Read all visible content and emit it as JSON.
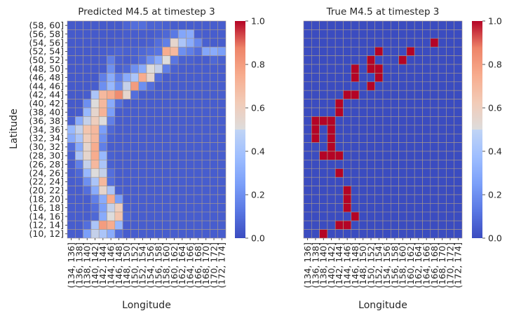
{
  "chart_data": [
    {
      "type": "heatmap",
      "title": "Predicted M4.5 at timestep 3",
      "xlabel": "Longitude",
      "ylabel": "Latitude",
      "x_categories": [
        "(134, 136]",
        "(136, 138]",
        "(138, 140]",
        "(140, 142]",
        "(142, 144]",
        "(144, 146]",
        "(146, 148]",
        "(148, 150]",
        "(150, 152]",
        "(152, 154]",
        "(154, 156]",
        "(156, 158]",
        "(158, 160]",
        "(160, 162]",
        "(162, 164]",
        "(164, 166]",
        "(166, 168]",
        "(168, 170]",
        "(170, 172]",
        "(172, 174]"
      ],
      "y_categories": [
        "(58, 60]",
        "(56, 58]",
        "(54, 56]",
        "(52, 54]",
        "(50, 52]",
        "(48, 50]",
        "(46, 48]",
        "(44, 46]",
        "(42, 44]",
        "(40, 42]",
        "(38, 40]",
        "(36, 38]",
        "(34, 36]",
        "(32, 34]",
        "(30, 32]",
        "(28, 30]",
        "(26, 28]",
        "(24, 26]",
        "(22, 24]",
        "(20, 22]",
        "(18, 20]",
        "(16, 18]",
        "(14, 16]",
        "(12, 14]",
        "(10, 12]"
      ],
      "colorbar": {
        "vmin": 0.0,
        "vmax": 1.0,
        "ticks": [
          "0.0",
          "0.2",
          "0.4",
          "0.6",
          "0.8",
          "1.0"
        ],
        "colormap": "coolwarm"
      },
      "values": [
        [
          0.04,
          0.04,
          0.04,
          0.04,
          0.04,
          0.04,
          0.04,
          0.07,
          0.1,
          0.1,
          0.07,
          0.07,
          0.06,
          0.05,
          0.05,
          0.05,
          0.05,
          0.05,
          0.05,
          0.05
        ],
        [
          0.04,
          0.04,
          0.04,
          0.04,
          0.04,
          0.04,
          0.04,
          0.05,
          0.05,
          0.05,
          0.05,
          0.06,
          0.08,
          0.13,
          0.28,
          0.3,
          0.06,
          0.05,
          0.05,
          0.05
        ],
        [
          0.04,
          0.04,
          0.04,
          0.04,
          0.04,
          0.04,
          0.05,
          0.05,
          0.05,
          0.05,
          0.06,
          0.1,
          0.15,
          0.55,
          0.4,
          0.3,
          0.18,
          0.06,
          0.05,
          0.05
        ],
        [
          0.04,
          0.04,
          0.04,
          0.04,
          0.05,
          0.06,
          0.07,
          0.06,
          0.06,
          0.08,
          0.1,
          0.12,
          0.75,
          0.7,
          0.2,
          0.15,
          0.1,
          0.28,
          0.3,
          0.25
        ],
        [
          0.04,
          0.04,
          0.04,
          0.04,
          0.05,
          0.15,
          0.06,
          0.05,
          0.06,
          0.1,
          0.2,
          0.3,
          0.5,
          0.12,
          0.06,
          0.06,
          0.05,
          0.05,
          0.08,
          0.06
        ],
        [
          0.04,
          0.04,
          0.04,
          0.04,
          0.05,
          0.2,
          0.06,
          0.08,
          0.2,
          0.3,
          0.5,
          0.45,
          0.15,
          0.06,
          0.05,
          0.05,
          0.05,
          0.05,
          0.05,
          0.05
        ],
        [
          0.04,
          0.04,
          0.04,
          0.04,
          0.15,
          0.3,
          0.15,
          0.3,
          0.4,
          0.75,
          0.55,
          0.1,
          0.05,
          0.05,
          0.05,
          0.05,
          0.05,
          0.05,
          0.05,
          0.05
        ],
        [
          0.04,
          0.04,
          0.04,
          0.05,
          0.2,
          0.35,
          0.2,
          0.45,
          0.8,
          0.2,
          0.1,
          0.05,
          0.05,
          0.05,
          0.05,
          0.05,
          0.05,
          0.05,
          0.05,
          0.05
        ],
        [
          0.04,
          0.04,
          0.05,
          0.4,
          0.7,
          0.75,
          0.85,
          0.55,
          0.1,
          0.05,
          0.05,
          0.05,
          0.05,
          0.05,
          0.05,
          0.05,
          0.05,
          0.05,
          0.05,
          0.05
        ],
        [
          0.04,
          0.04,
          0.2,
          0.5,
          0.7,
          0.3,
          0.1,
          0.05,
          0.05,
          0.05,
          0.05,
          0.05,
          0.05,
          0.05,
          0.05,
          0.05,
          0.05,
          0.05,
          0.05,
          0.05
        ],
        [
          0.04,
          0.05,
          0.35,
          0.55,
          0.72,
          0.25,
          0.05,
          0.05,
          0.05,
          0.05,
          0.05,
          0.05,
          0.05,
          0.05,
          0.05,
          0.05,
          0.05,
          0.05,
          0.05,
          0.05
        ],
        [
          0.06,
          0.3,
          0.45,
          0.6,
          0.5,
          0.15,
          0.05,
          0.05,
          0.05,
          0.05,
          0.05,
          0.05,
          0.05,
          0.05,
          0.05,
          0.05,
          0.05,
          0.05,
          0.05,
          0.05
        ],
        [
          0.35,
          0.45,
          0.65,
          0.7,
          0.25,
          0.08,
          0.05,
          0.05,
          0.05,
          0.05,
          0.05,
          0.05,
          0.05,
          0.05,
          0.05,
          0.05,
          0.05,
          0.05,
          0.05,
          0.05
        ],
        [
          0.3,
          0.4,
          0.6,
          0.7,
          0.2,
          0.06,
          0.05,
          0.05,
          0.05,
          0.05,
          0.05,
          0.05,
          0.05,
          0.05,
          0.05,
          0.05,
          0.05,
          0.05,
          0.05,
          0.05
        ],
        [
          0.1,
          0.3,
          0.55,
          0.75,
          0.15,
          0.05,
          0.05,
          0.05,
          0.05,
          0.05,
          0.05,
          0.05,
          0.05,
          0.05,
          0.05,
          0.05,
          0.05,
          0.05,
          0.05,
          0.05
        ],
        [
          0.06,
          0.4,
          0.55,
          0.75,
          0.35,
          0.06,
          0.05,
          0.05,
          0.05,
          0.05,
          0.05,
          0.05,
          0.05,
          0.05,
          0.05,
          0.05,
          0.05,
          0.05,
          0.05,
          0.05
        ],
        [
          0.05,
          0.15,
          0.45,
          0.7,
          0.4,
          0.06,
          0.05,
          0.05,
          0.05,
          0.05,
          0.05,
          0.05,
          0.05,
          0.05,
          0.05,
          0.05,
          0.05,
          0.05,
          0.05,
          0.05
        ],
        [
          0.05,
          0.08,
          0.35,
          0.5,
          0.45,
          0.1,
          0.05,
          0.05,
          0.05,
          0.05,
          0.05,
          0.05,
          0.05,
          0.05,
          0.05,
          0.05,
          0.05,
          0.05,
          0.05,
          0.05
        ],
        [
          0.05,
          0.06,
          0.2,
          0.4,
          0.7,
          0.1,
          0.05,
          0.05,
          0.05,
          0.05,
          0.05,
          0.05,
          0.05,
          0.05,
          0.05,
          0.05,
          0.05,
          0.05,
          0.05,
          0.05
        ],
        [
          0.05,
          0.05,
          0.1,
          0.3,
          0.55,
          0.4,
          0.06,
          0.05,
          0.05,
          0.05,
          0.05,
          0.05,
          0.05,
          0.05,
          0.05,
          0.05,
          0.05,
          0.05,
          0.05,
          0.05
        ],
        [
          0.05,
          0.05,
          0.05,
          0.15,
          0.3,
          0.75,
          0.25,
          0.05,
          0.05,
          0.05,
          0.05,
          0.05,
          0.05,
          0.05,
          0.05,
          0.05,
          0.05,
          0.05,
          0.05,
          0.05
        ],
        [
          0.05,
          0.05,
          0.05,
          0.1,
          0.25,
          0.45,
          0.6,
          0.06,
          0.05,
          0.05,
          0.05,
          0.05,
          0.05,
          0.05,
          0.05,
          0.05,
          0.05,
          0.05,
          0.05,
          0.05
        ],
        [
          0.05,
          0.05,
          0.05,
          0.08,
          0.3,
          0.5,
          0.65,
          0.08,
          0.05,
          0.05,
          0.05,
          0.05,
          0.05,
          0.05,
          0.05,
          0.05,
          0.05,
          0.05,
          0.05,
          0.05
        ],
        [
          0.05,
          0.05,
          0.1,
          0.4,
          0.8,
          0.75,
          0.35,
          0.05,
          0.05,
          0.05,
          0.05,
          0.05,
          0.05,
          0.05,
          0.05,
          0.05,
          0.05,
          0.05,
          0.05,
          0.05
        ],
        [
          0.05,
          0.05,
          0.25,
          0.45,
          0.4,
          0.3,
          0.1,
          0.05,
          0.05,
          0.05,
          0.05,
          0.05,
          0.05,
          0.05,
          0.05,
          0.05,
          0.05,
          0.05,
          0.05,
          0.05
        ]
      ]
    },
    {
      "type": "heatmap",
      "title": "True M4.5 at timestep 3",
      "xlabel": "Longitude",
      "ylabel": "",
      "x_categories": [
        "(134, 136]",
        "(136, 138]",
        "(138, 140]",
        "(140, 142]",
        "(142, 144]",
        "(144, 146]",
        "(146, 148]",
        "(148, 150]",
        "(150, 152]",
        "(152, 154]",
        "(154, 156]",
        "(156, 158]",
        "(158, 160]",
        "(160, 162]",
        "(162, 164]",
        "(164, 166]",
        "(166, 168]",
        "(168, 170]",
        "(170, 172]",
        "(172, 174]"
      ],
      "colorbar": {
        "vmin": 0.0,
        "vmax": 1.0,
        "ticks": [
          "0.0",
          "0.2",
          "0.4",
          "0.6",
          "0.8",
          "1.0"
        ],
        "colormap": "coolwarm"
      },
      "ones": [
        [
          2,
          16
        ],
        [
          3,
          9
        ],
        [
          3,
          13
        ],
        [
          4,
          8
        ],
        [
          4,
          12
        ],
        [
          5,
          6
        ],
        [
          5,
          8
        ],
        [
          5,
          9
        ],
        [
          6,
          6
        ],
        [
          6,
          9
        ],
        [
          7,
          8
        ],
        [
          8,
          5
        ],
        [
          8,
          6
        ],
        [
          9,
          4
        ],
        [
          10,
          4
        ],
        [
          11,
          1
        ],
        [
          11,
          2
        ],
        [
          11,
          3
        ],
        [
          12,
          1
        ],
        [
          12,
          3
        ],
        [
          13,
          1
        ],
        [
          13,
          3
        ],
        [
          14,
          3
        ],
        [
          15,
          2
        ],
        [
          15,
          3
        ],
        [
          15,
          4
        ],
        [
          17,
          4
        ],
        [
          19,
          5
        ],
        [
          20,
          5
        ],
        [
          21,
          5
        ],
        [
          22,
          6
        ],
        [
          23,
          4
        ],
        [
          23,
          5
        ],
        [
          24,
          2
        ]
      ]
    }
  ]
}
